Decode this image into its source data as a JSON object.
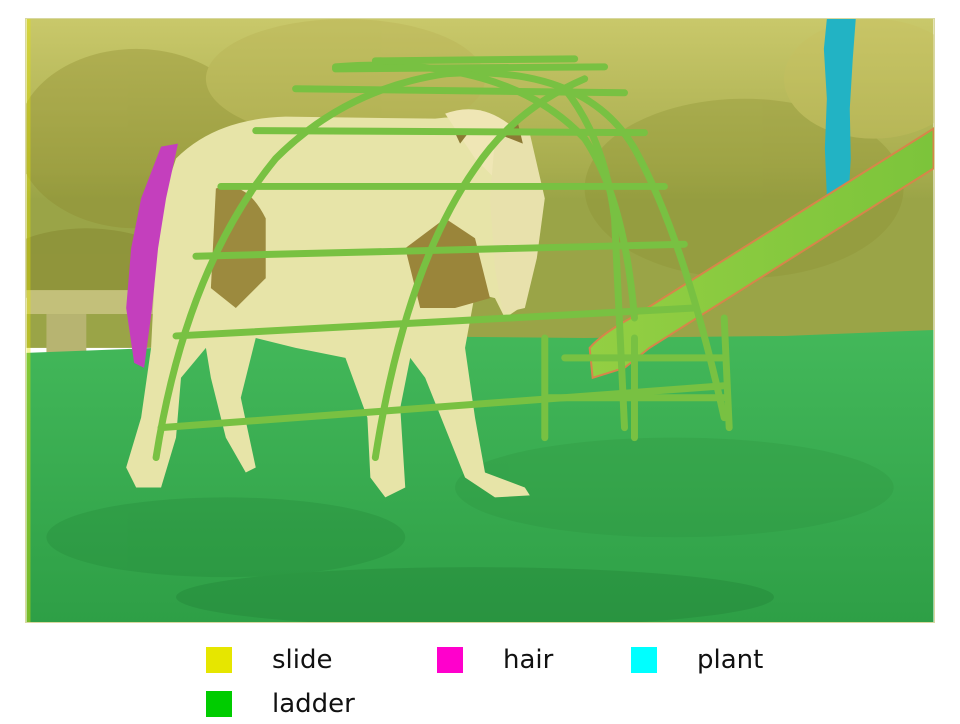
{
  "legend": {
    "items": [
      {
        "label": "slide",
        "color": "#e6e600"
      },
      {
        "label": "hair",
        "color": "#ff00cc"
      },
      {
        "label": "plant",
        "color": "#00ffff"
      },
      {
        "label": "ladder",
        "color": "#00cc00"
      }
    ]
  },
  "overlay_colors": {
    "slide": "#e6e600",
    "hair": "#ff00cc",
    "plant": "#00ffff",
    "ladder": "#00cc00"
  }
}
